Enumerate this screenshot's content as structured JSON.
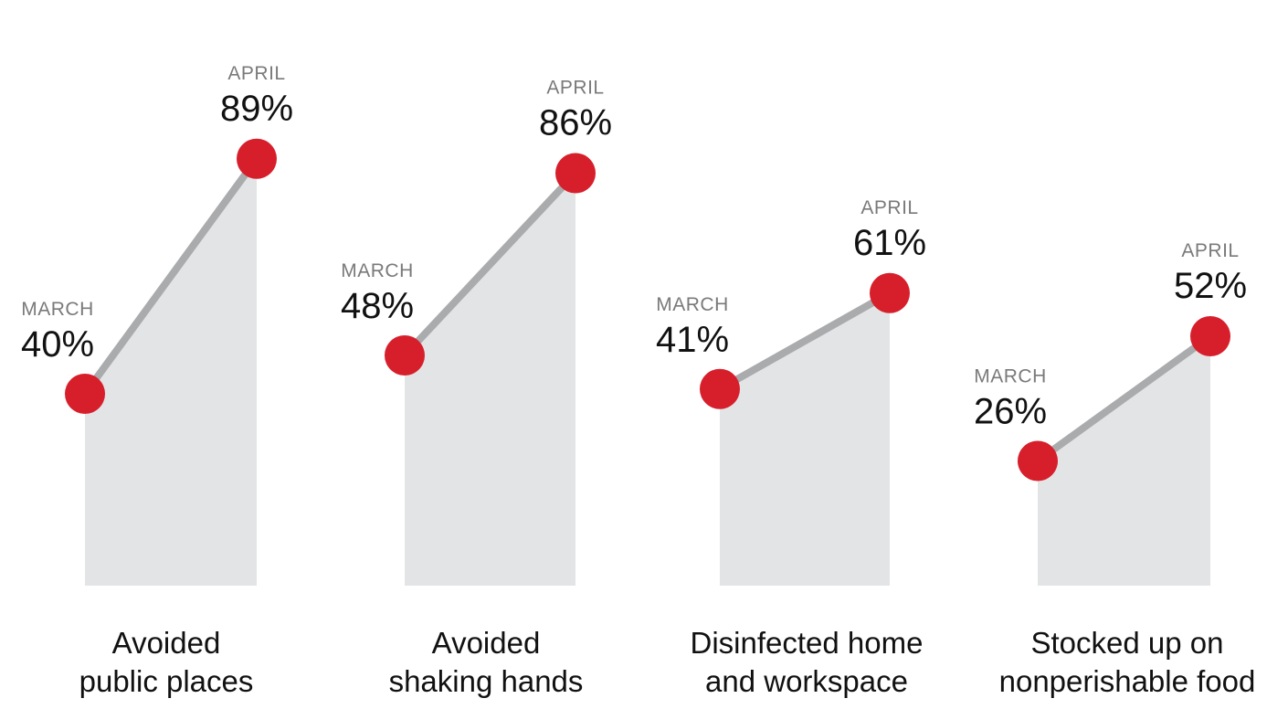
{
  "chart_data": {
    "type": "line",
    "panels": [
      {
        "category": [
          "Avoided",
          "public places"
        ],
        "points": [
          {
            "period": "MARCH",
            "value": 40,
            "label": "40%"
          },
          {
            "period": "APRIL",
            "value": 89,
            "label": "89%"
          }
        ]
      },
      {
        "category": [
          "Avoided",
          "shaking hands"
        ],
        "points": [
          {
            "period": "MARCH",
            "value": 48,
            "label": "48%"
          },
          {
            "period": "APRIL",
            "value": 86,
            "label": "86%"
          }
        ]
      },
      {
        "category": [
          "Disinfected home",
          "and workspace"
        ],
        "points": [
          {
            "period": "MARCH",
            "value": 41,
            "label": "41%"
          },
          {
            "period": "APRIL",
            "value": 61,
            "label": "61%"
          }
        ]
      },
      {
        "category": [
          "Stocked up on",
          "nonperishable food"
        ],
        "points": [
          {
            "period": "MARCH",
            "value": 26,
            "label": "26%"
          },
          {
            "period": "APRIL",
            "value": 52,
            "label": "52%"
          }
        ]
      }
    ],
    "ylim": [
      0,
      100
    ],
    "colors": {
      "area": "#e3e4e6",
      "line": "#aaabad",
      "point": "#d71f2b",
      "period_text": "#7a7a7a",
      "value_text": "#111111"
    }
  }
}
